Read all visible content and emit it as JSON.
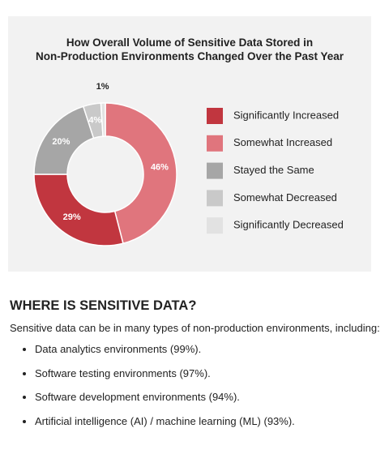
{
  "chart_data": {
    "type": "donut",
    "title": [
      "How Overall Volume of Sensitive Data Stored in",
      "Non-Production Environments Changed Over the Past Year"
    ],
    "series": [
      {
        "name": "Significantly Increased",
        "color": "#c1363f",
        "values": [
          29
        ],
        "value_labels": [
          "29%"
        ]
      },
      {
        "name": "Somewhat Increased",
        "color": "#e0757d",
        "values": [
          46
        ],
        "value_labels": [
          "46%"
        ]
      },
      {
        "name": "Stayed the Same",
        "color": "#a6a6a6",
        "values": [
          20
        ],
        "value_labels": [
          "20%"
        ]
      },
      {
        "name": "Somewhat Decreased",
        "color": "#c9c9c9",
        "values": [
          4
        ],
        "value_labels": [
          "4%"
        ]
      },
      {
        "name": "Significantly Decreased",
        "color": "#e2e2e2",
        "values": [
          1
        ],
        "value_labels": [
          "1%"
        ]
      }
    ],
    "legend": "right"
  },
  "section": {
    "heading": "WHERE IS SENSITIVE DATA?",
    "intro": "Sensitive data can be in many types of non-production environments, including:",
    "items": [
      "Data analytics environments (99%).",
      "Software testing environments (97%).",
      "Software development environments (94%).",
      "Artificial intelligence (AI) / machine learning (ML) (93%)."
    ]
  }
}
